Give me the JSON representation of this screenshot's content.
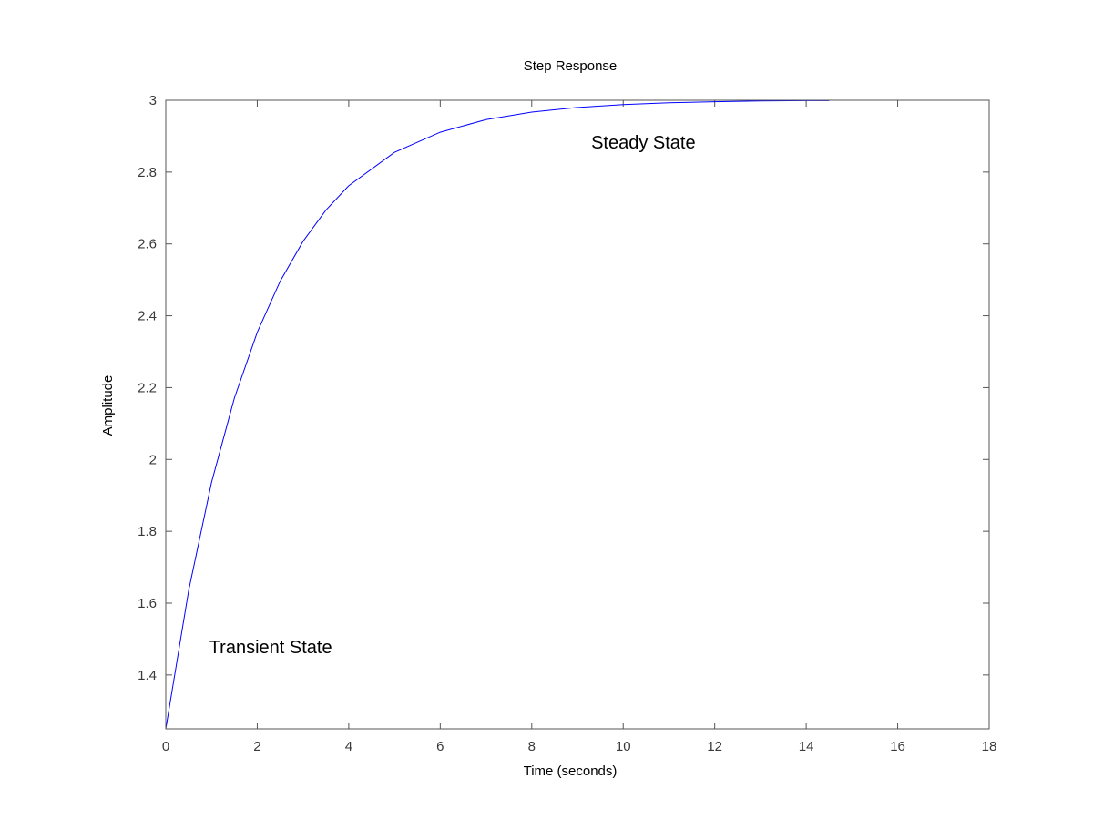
{
  "chart_data": {
    "type": "line",
    "title": "Step Response",
    "xlabel": "Time (seconds)",
    "ylabel": "Amplitude",
    "xlim": [
      0,
      18
    ],
    "ylim": [
      1.25,
      3.0
    ],
    "x_ticks": [
      0,
      2,
      4,
      6,
      8,
      10,
      12,
      14,
      16,
      18
    ],
    "y_ticks": [
      1.4,
      1.6,
      1.8,
      2,
      2.2,
      2.4,
      2.6,
      2.8,
      3
    ],
    "grid": false,
    "line_color": "#0000ff",
    "axis_color": "#555555",
    "series": [
      {
        "x": [
          0,
          0.5,
          1,
          1.5,
          2,
          2.5,
          3,
          3.5,
          4,
          5,
          6,
          7,
          8,
          9,
          10,
          11,
          12,
          13,
          14,
          14.5
        ],
        "y": [
          1.25,
          1.635,
          1.936,
          2.171,
          2.354,
          2.496,
          2.607,
          2.694,
          2.762,
          2.855,
          2.911,
          2.946,
          2.967,
          2.98,
          2.988,
          2.993,
          2.996,
          2.998,
          2.999,
          2.999
        ]
      }
    ],
    "annotations": [
      {
        "text": "Steady State",
        "x": 9.3,
        "y": 2.865
      },
      {
        "text": "Transient State",
        "x": 0.95,
        "y": 1.46
      }
    ]
  }
}
